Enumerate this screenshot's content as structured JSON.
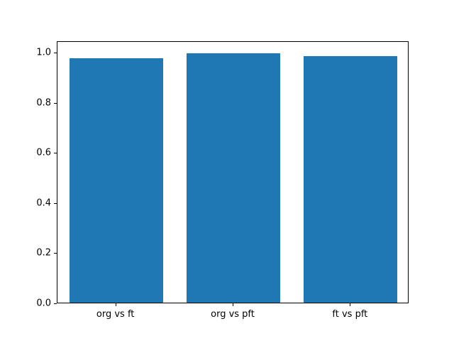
{
  "chart_data": {
    "type": "bar",
    "categories": [
      "org vs ft",
      "org vs pft",
      "ft vs pft"
    ],
    "values": [
      0.975,
      0.995,
      0.982
    ],
    "title": "",
    "xlabel": "",
    "ylabel": "",
    "ylim": [
      0,
      1.045
    ],
    "yticks": [
      0.0,
      0.2,
      0.4,
      0.6,
      0.8,
      1.0
    ],
    "ytick_labels": [
      "0.0",
      "0.2",
      "0.4",
      "0.6",
      "0.8",
      "1.0"
    ],
    "bar_color": "#1f77b4",
    "background_color": "#ffffff",
    "axis_color": "#000000",
    "grid": false,
    "legend": "none",
    "bar_relative_width": 0.8
  }
}
